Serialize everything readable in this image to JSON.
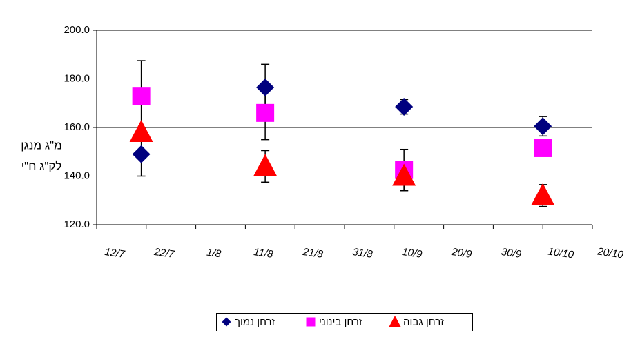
{
  "chart_data": {
    "type": "scatter",
    "y_label_lines": [
      "מ\"ג מנגן",
      "לק\"ג ח\"י"
    ],
    "xlim": [
      193,
      293
    ],
    "xticks": [
      {
        "value": 193,
        "label": "12/7"
      },
      {
        "value": 203,
        "label": "22/7"
      },
      {
        "value": 213,
        "label": "1/8"
      },
      {
        "value": 223,
        "label": "11/8"
      },
      {
        "value": 233,
        "label": "21/8"
      },
      {
        "value": 243,
        "label": "31/8"
      },
      {
        "value": 253,
        "label": "10/9"
      },
      {
        "value": 263,
        "label": "20/9"
      },
      {
        "value": 273,
        "label": "30/9"
      },
      {
        "value": 283,
        "label": "10/10"
      },
      {
        "value": 293,
        "label": "20/10"
      }
    ],
    "ylim": [
      120,
      200
    ],
    "yticks": [
      {
        "value": 120,
        "label": "120.0"
      },
      {
        "value": 140,
        "label": "140.0"
      },
      {
        "value": 160,
        "label": "160.0"
      },
      {
        "value": 180,
        "label": "180.0"
      },
      {
        "value": 200,
        "label": "200.0"
      }
    ],
    "grid": true,
    "legend": "bottom",
    "series": [
      {
        "name": "זרחן נמוך",
        "color": "#00007f",
        "marker": "diamond",
        "x": [
          202,
          227,
          255,
          283
        ],
        "values": [
          149,
          176.5,
          168.5,
          160.5
        ],
        "errors": [
          9,
          9.5,
          3,
          4
        ]
      },
      {
        "name": "זרחן בינוני",
        "color": "#ff00ff",
        "marker": "square",
        "x": [
          202,
          227,
          255,
          283
        ],
        "values": [
          173,
          166,
          142.5,
          151.5
        ],
        "errors": [
          14.5,
          11,
          8.5,
          0
        ]
      },
      {
        "name": "זרחן גבוה",
        "color": "#ff0000",
        "marker": "triangle",
        "x": [
          202,
          227,
          255,
          283
        ],
        "values": [
          158,
          144,
          140,
          132
        ],
        "errors": [
          0,
          6.5,
          6,
          4.5
        ]
      }
    ]
  }
}
